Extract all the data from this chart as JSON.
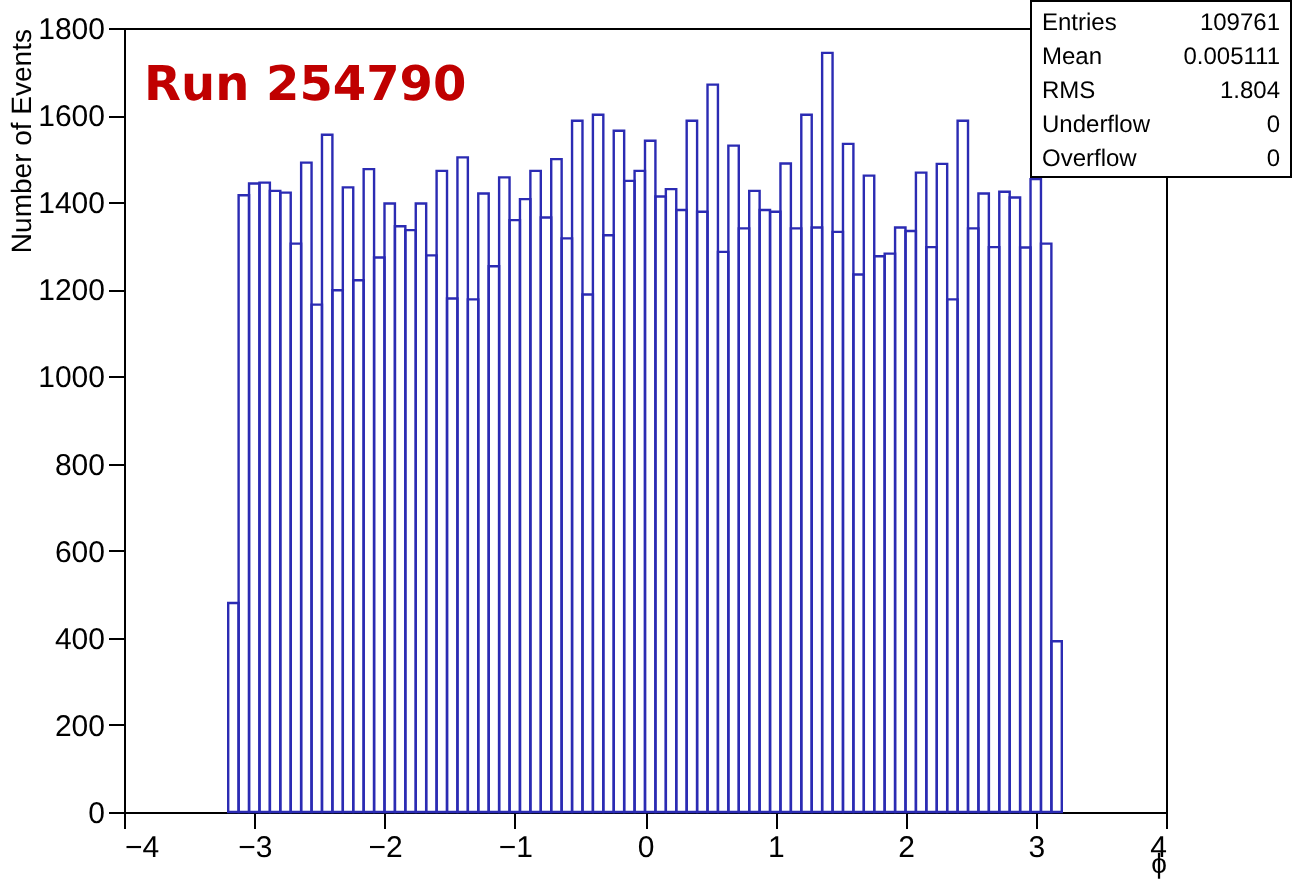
{
  "chart_data": {
    "type": "histogram",
    "xlabel": "ϕ",
    "ylabel": "Number of Events",
    "annotations": [
      "Run 254790",
      "Entries",
      "109761",
      "Mean",
      "0.005111",
      "RMS",
      "1.804",
      "Underflow",
      "0",
      "Overflow",
      "0"
    ],
    "bins": [
      -3.2,
      -3.12,
      -3.04,
      -2.96,
      -2.88,
      -2.8,
      -2.72,
      -2.64,
      -2.56,
      -2.48,
      -2.4,
      -2.32,
      -2.24,
      -2.16,
      -2.08,
      -2.0,
      -1.92,
      -1.84,
      -1.76,
      -1.68,
      -1.6,
      -1.52,
      -1.44,
      -1.36,
      -1.28,
      -1.2,
      -1.12,
      -1.04,
      -0.96,
      -0.88,
      -0.8,
      -0.72,
      -0.64,
      -0.56,
      -0.48,
      -0.4,
      -0.32,
      -0.24,
      -0.16,
      -0.08,
      0.0,
      0.08,
      0.16,
      0.24,
      0.32,
      0.4,
      0.48,
      0.56,
      0.64,
      0.72,
      0.8,
      0.88,
      0.96,
      1.04,
      1.12,
      1.2,
      1.28,
      1.36,
      1.44,
      1.52,
      1.6,
      1.68,
      1.76,
      1.84,
      1.92,
      2.0,
      2.08,
      2.16,
      2.24,
      2.32,
      2.4,
      2.48,
      2.56,
      2.64,
      2.72,
      2.8,
      2.88,
      2.96,
      3.04,
      3.12,
      3.2
    ],
    "values": [
      480,
      1416,
      1443,
      1445,
      1426,
      1422,
      1305,
      1491,
      1165,
      1555,
      1198,
      1434,
      1221,
      1476,
      1273,
      1397,
      1345,
      1336,
      1397,
      1278,
      1472,
      1179,
      1503,
      1177,
      1420,
      1253,
      1457,
      1359,
      1407,
      1472,
      1365,
      1499,
      1317,
      1587,
      1188,
      1601,
      1324,
      1564,
      1449,
      1472,
      1541,
      1413,
      1430,
      1382,
      1587,
      1378,
      1670,
      1286,
      1530,
      1340,
      1426,
      1382,
      1378,
      1489,
      1340,
      1601,
      1342,
      1743,
      1332,
      1534,
      1234,
      1461,
      1276,
      1282,
      1342,
      1334,
      1468,
      1297,
      1488,
      1177,
      1587,
      1340,
      1420,
      1297,
      1424,
      1411,
      1296,
      1453,
      1305,
      392
    ],
    "color": "#2b2bb3",
    "xlim": [
      -4,
      4
    ],
    "xticks": [
      -4,
      -3,
      -2,
      -1,
      0,
      1,
      2,
      3,
      4
    ],
    "ylim": [
      0,
      1800
    ],
    "yticks": [
      0,
      200,
      400,
      600,
      800,
      1000,
      1200,
      1400,
      1600,
      1800
    ],
    "grid": false
  }
}
